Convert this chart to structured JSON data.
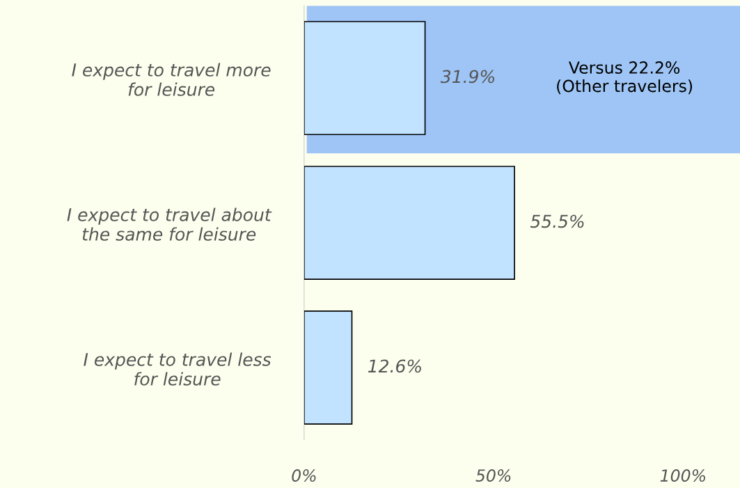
{
  "chart_data": {
    "type": "bar",
    "orientation": "horizontal",
    "categories": [
      "I expect to travel more\nfor leisure",
      "I expect to travel about\nthe same for leisure",
      "I expect to travel less\nfor leisure"
    ],
    "values": [
      31.9,
      55.5,
      12.6
    ],
    "value_labels": [
      "31.9%",
      "55.5%",
      "12.6%"
    ],
    "color": "#c2e3ff",
    "xlim": [
      0,
      115
    ],
    "xticks": [
      {
        "value": 0,
        "label": "0%"
      },
      {
        "value": 50,
        "label": "50%"
      },
      {
        "value": 100,
        "label": "100%"
      }
    ],
    "annotations": [
      "Versus 22.2%\n(Other travelers)"
    ],
    "grid": false,
    "legend": false
  }
}
